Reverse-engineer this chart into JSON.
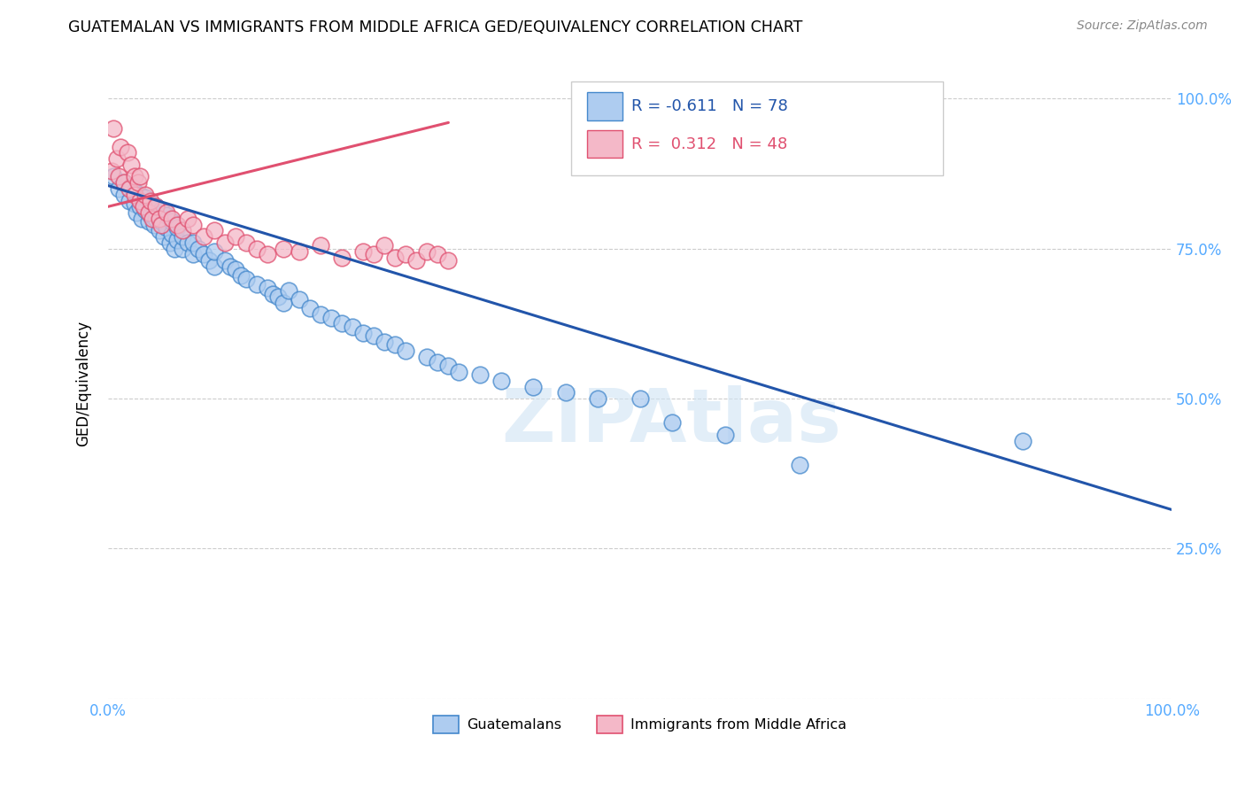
{
  "title": "GUATEMALAN VS IMMIGRANTS FROM MIDDLE AFRICA GED/EQUIVALENCY CORRELATION CHART",
  "source": "Source: ZipAtlas.com",
  "ylabel": "GED/Equivalency",
  "xlim": [
    0.0,
    1.0
  ],
  "ylim": [
    0.0,
    1.05
  ],
  "legend_blue_r": "-0.611",
  "legend_blue_n": "78",
  "legend_pink_r": "0.312",
  "legend_pink_n": "48",
  "blue_color": "#aeccf0",
  "blue_edge_color": "#4488cc",
  "pink_color": "#f4b8c8",
  "pink_edge_color": "#e05070",
  "blue_line_color": "#2255aa",
  "pink_line_color": "#e05070",
  "watermark": "ZIPAtlas",
  "blue_scatter_x": [
    0.005,
    0.01,
    0.015,
    0.015,
    0.02,
    0.022,
    0.025,
    0.025,
    0.027,
    0.03,
    0.03,
    0.032,
    0.035,
    0.035,
    0.038,
    0.04,
    0.04,
    0.043,
    0.045,
    0.045,
    0.048,
    0.05,
    0.05,
    0.052,
    0.055,
    0.055,
    0.058,
    0.06,
    0.06,
    0.062,
    0.065,
    0.065,
    0.07,
    0.07,
    0.075,
    0.08,
    0.08,
    0.085,
    0.09,
    0.095,
    0.1,
    0.1,
    0.11,
    0.115,
    0.12,
    0.125,
    0.13,
    0.14,
    0.15,
    0.155,
    0.16,
    0.165,
    0.17,
    0.18,
    0.19,
    0.2,
    0.21,
    0.22,
    0.23,
    0.24,
    0.25,
    0.26,
    0.27,
    0.28,
    0.3,
    0.31,
    0.32,
    0.33,
    0.35,
    0.37,
    0.4,
    0.43,
    0.46,
    0.5,
    0.53,
    0.58,
    0.65,
    0.86
  ],
  "blue_scatter_y": [
    0.87,
    0.85,
    0.86,
    0.84,
    0.83,
    0.855,
    0.825,
    0.845,
    0.81,
    0.82,
    0.84,
    0.8,
    0.815,
    0.835,
    0.795,
    0.805,
    0.825,
    0.79,
    0.8,
    0.82,
    0.78,
    0.795,
    0.815,
    0.77,
    0.785,
    0.805,
    0.76,
    0.775,
    0.795,
    0.75,
    0.765,
    0.785,
    0.75,
    0.77,
    0.76,
    0.74,
    0.76,
    0.75,
    0.74,
    0.73,
    0.72,
    0.745,
    0.73,
    0.72,
    0.715,
    0.705,
    0.7,
    0.69,
    0.685,
    0.675,
    0.67,
    0.66,
    0.68,
    0.665,
    0.65,
    0.64,
    0.635,
    0.625,
    0.62,
    0.61,
    0.605,
    0.595,
    0.59,
    0.58,
    0.57,
    0.56,
    0.555,
    0.545,
    0.54,
    0.53,
    0.52,
    0.51,
    0.5,
    0.5,
    0.46,
    0.44,
    0.39,
    0.43
  ],
  "pink_scatter_x": [
    0.003,
    0.005,
    0.008,
    0.01,
    0.012,
    0.015,
    0.018,
    0.02,
    0.022,
    0.025,
    0.025,
    0.028,
    0.03,
    0.03,
    0.033,
    0.035,
    0.038,
    0.04,
    0.042,
    0.045,
    0.048,
    0.05,
    0.055,
    0.06,
    0.065,
    0.07,
    0.075,
    0.08,
    0.09,
    0.1,
    0.11,
    0.12,
    0.13,
    0.14,
    0.15,
    0.165,
    0.18,
    0.2,
    0.22,
    0.24,
    0.25,
    0.26,
    0.27,
    0.28,
    0.29,
    0.3,
    0.31,
    0.32
  ],
  "pink_scatter_y": [
    0.88,
    0.95,
    0.9,
    0.87,
    0.92,
    0.86,
    0.91,
    0.85,
    0.89,
    0.87,
    0.84,
    0.86,
    0.83,
    0.87,
    0.82,
    0.84,
    0.81,
    0.83,
    0.8,
    0.82,
    0.8,
    0.79,
    0.81,
    0.8,
    0.79,
    0.78,
    0.8,
    0.79,
    0.77,
    0.78,
    0.76,
    0.77,
    0.76,
    0.75,
    0.74,
    0.75,
    0.745,
    0.755,
    0.735,
    0.745,
    0.74,
    0.755,
    0.735,
    0.74,
    0.73,
    0.745,
    0.74,
    0.73
  ],
  "blue_line_x0": 0.0,
  "blue_line_x1": 1.0,
  "blue_line_y0": 0.855,
  "blue_line_y1": 0.315,
  "pink_line_x0": 0.0,
  "pink_line_x1": 0.32,
  "pink_line_y0": 0.82,
  "pink_line_y1": 0.96
}
